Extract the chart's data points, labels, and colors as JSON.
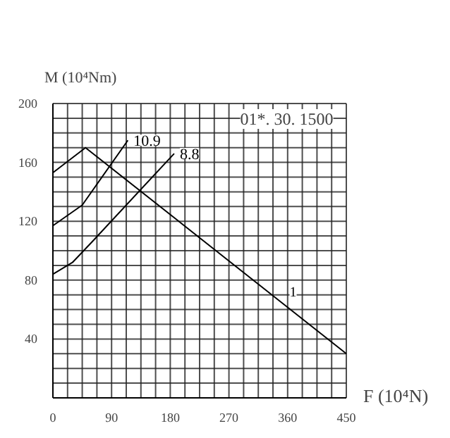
{
  "chart_data": {
    "type": "line",
    "xlabel": "F (10⁴N)",
    "ylabel": "M (10⁴Nm)",
    "annotations": [
      "01*. 30. 1500"
    ],
    "xlim": [
      0,
      450
    ],
    "ylim": [
      0,
      200
    ],
    "xticks": [
      0,
      {
        "value": 22.5,
        "label": null
      },
      {
        "value": 45,
        "label": null
      },
      {
        "value": 67.5,
        "label": null
      },
      90,
      {
        "value": 112.5,
        "label": null
      },
      {
        "value": 135,
        "label": null
      },
      {
        "value": 157.5,
        "label": null
      },
      180,
      {
        "value": 202.5,
        "label": null
      },
      {
        "value": 225,
        "label": null
      },
      {
        "value": 247.5,
        "label": null
      },
      270,
      {
        "value": 292.5,
        "label": null
      },
      {
        "value": 315,
        "label": null
      },
      {
        "value": 337.5,
        "label": null
      },
      360,
      {
        "value": 382.5,
        "label": null
      },
      {
        "value": 405,
        "label": null
      },
      {
        "value": 427.5,
        "label": null
      },
      450
    ],
    "yticks": [
      {
        "value": 10,
        "label": null
      },
      {
        "value": 20,
        "label": null
      },
      {
        "value": 30,
        "label": null
      },
      40,
      {
        "value": 50,
        "label": null
      },
      {
        "value": 60,
        "label": null
      },
      {
        "value": 70,
        "label": null
      },
      80,
      {
        "value": 90,
        "label": null
      },
      {
        "value": 100,
        "label": null
      },
      {
        "value": 110,
        "label": null
      },
      120,
      {
        "value": 130,
        "label": null
      },
      {
        "value": 140,
        "label": null
      },
      {
        "value": 150,
        "label": null
      },
      160,
      {
        "value": 170,
        "label": null
      },
      {
        "value": 180,
        "label": null
      },
      {
        "value": 190,
        "label": null
      },
      200
    ],
    "grid": true,
    "series": [
      {
        "name": "10.9",
        "color": "#000000",
        "x": [
          0,
          45,
          115
        ],
        "values": [
          117,
          131,
          175
        ]
      },
      {
        "name": "8.8",
        "color": "#000000",
        "x": [
          0,
          30,
          60,
          186
        ],
        "values": [
          84,
          92,
          106,
          166
        ]
      },
      {
        "name": "1",
        "color": "#000000",
        "x": [
          0,
          50,
          450
        ],
        "values": [
          153,
          170,
          30
        ]
      }
    ]
  }
}
